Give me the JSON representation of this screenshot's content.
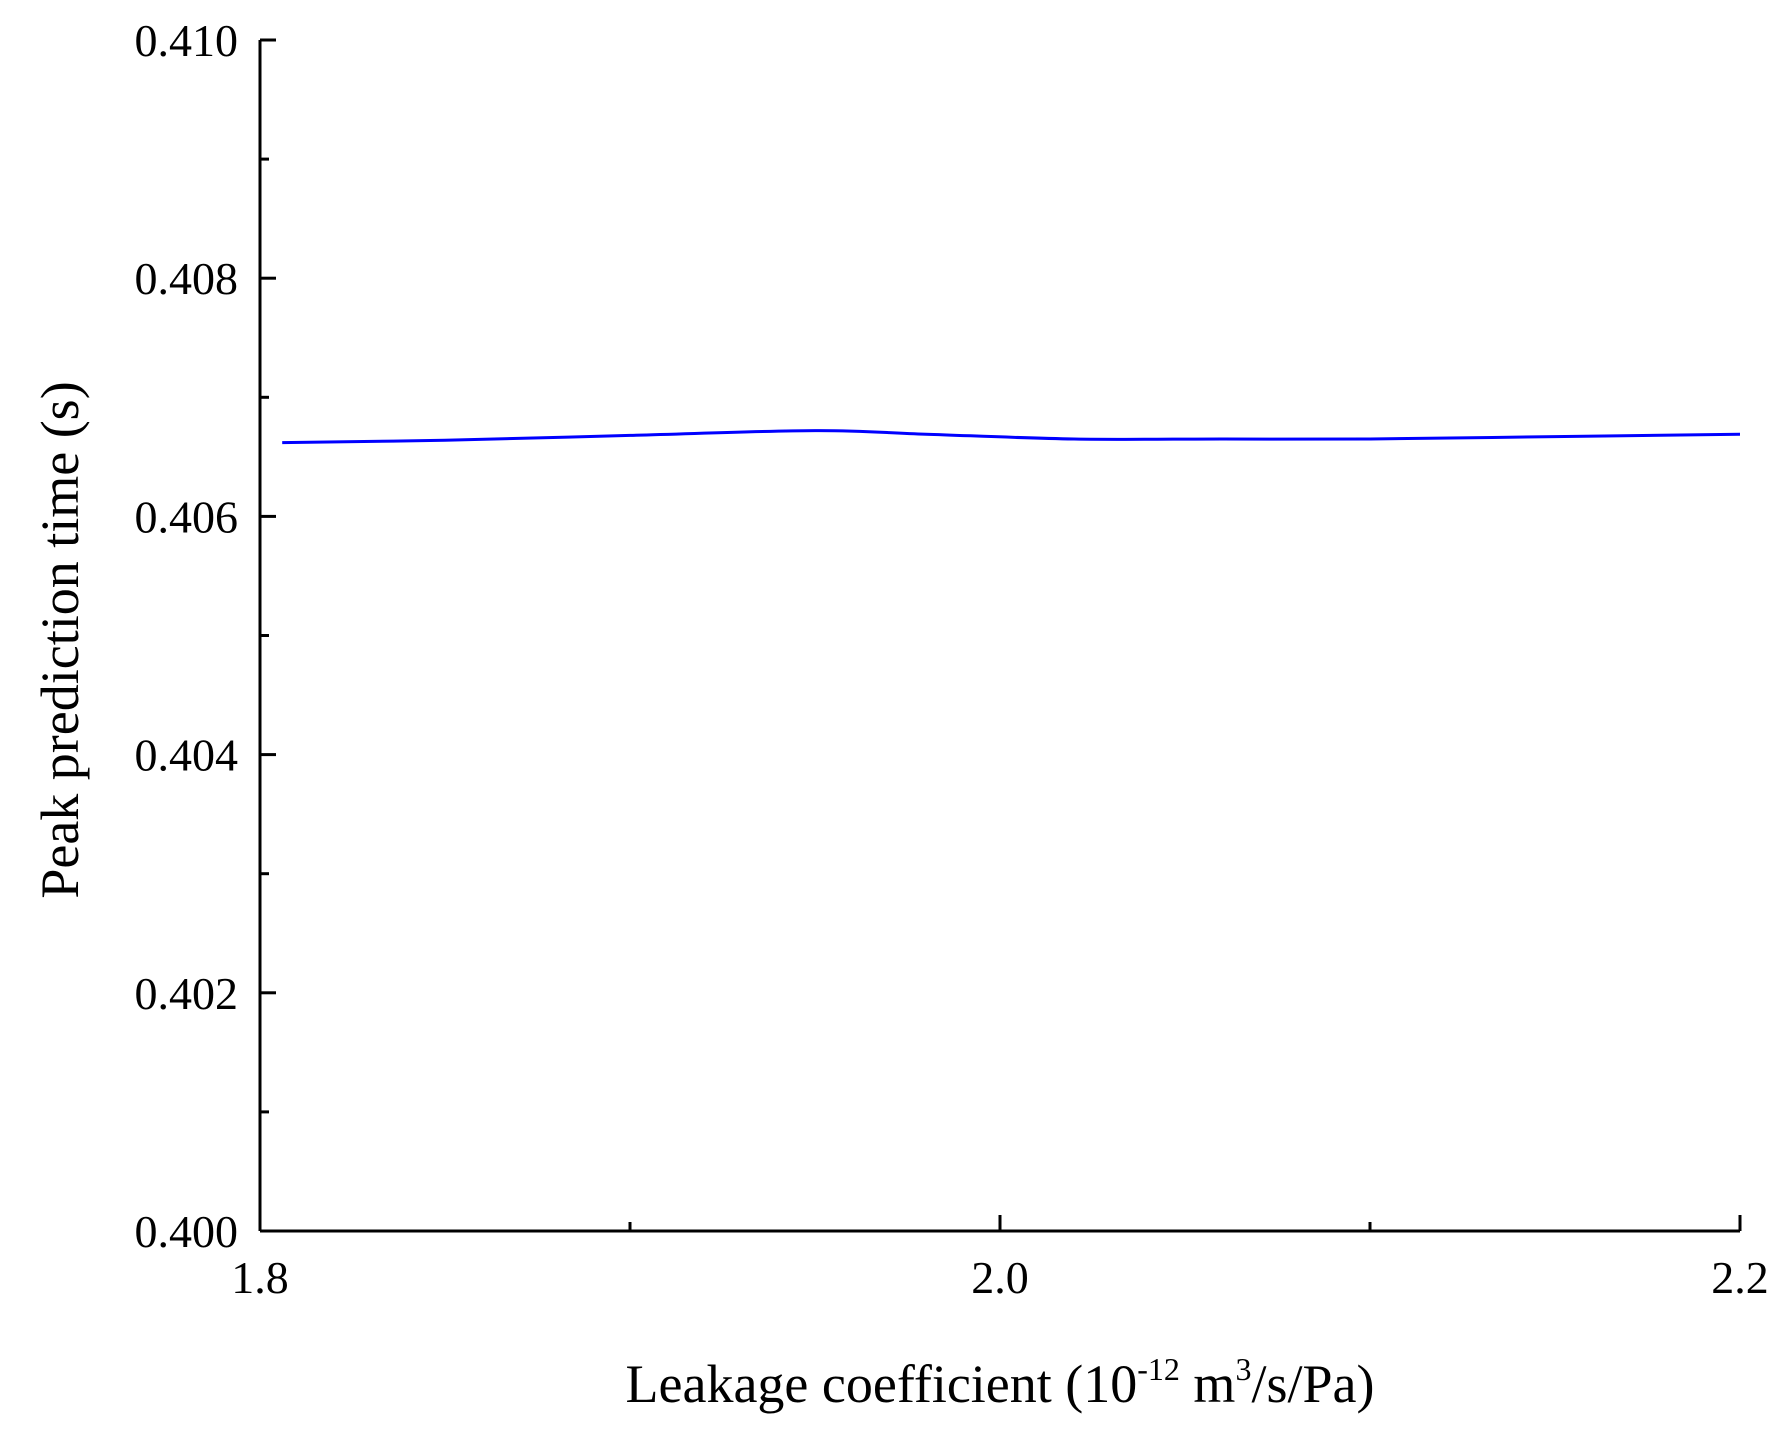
{
  "chart_data": {
    "type": "line",
    "title": "",
    "xlabel": {
      "prefix": "Leakage coefficient (10",
      "exp1": "-12",
      "middle": " m",
      "exp2": "3",
      "suffix": "/s/Pa)"
    },
    "ylabel": "Peak prediction time (s)",
    "xlim": [
      1.8,
      2.2
    ],
    "ylim": [
      0.4,
      0.41
    ],
    "x_ticks": [
      1.8,
      2.0,
      2.2
    ],
    "x_tick_labels": [
      "1.8",
      "2.0",
      "2.2"
    ],
    "x_minor_ticks": [
      1.9,
      2.1
    ],
    "y_ticks": [
      0.4,
      0.402,
      0.404,
      0.406,
      0.408,
      0.41
    ],
    "y_tick_labels": [
      "0.400",
      "0.402",
      "0.404",
      "0.406",
      "0.408",
      "0.410"
    ],
    "y_minor_ticks": [
      0.401,
      0.403,
      0.405,
      0.407,
      0.409
    ],
    "grid": false,
    "series": [
      {
        "color": "#0000ff",
        "x": [
          1.806,
          1.85,
          1.9,
          1.95,
          1.98,
          2.02,
          2.06,
          2.1,
          2.15,
          2.2
        ],
        "y": [
          0.40662,
          0.40664,
          0.40668,
          0.40672,
          0.40669,
          0.40665,
          0.40665,
          0.40665,
          0.40667,
          0.40669
        ]
      }
    ]
  }
}
